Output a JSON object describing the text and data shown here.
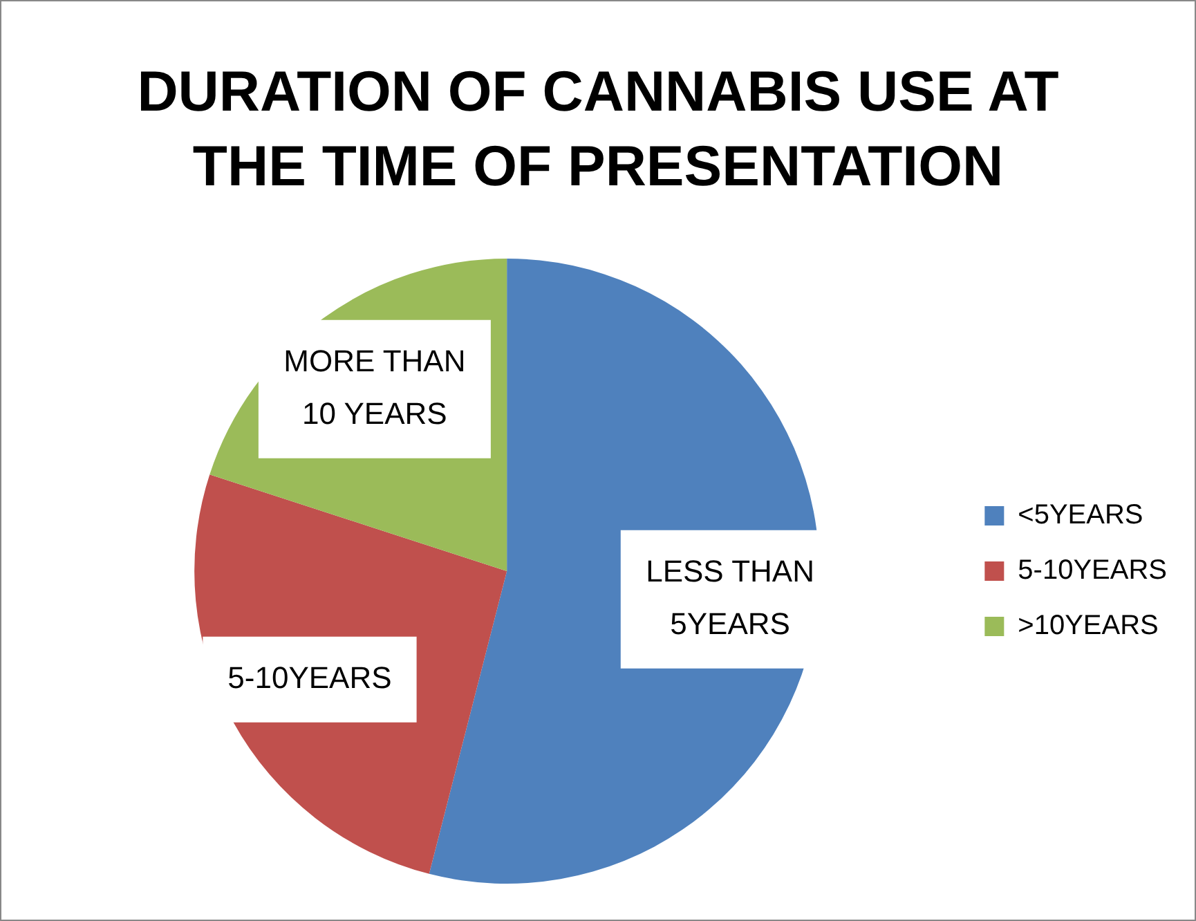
{
  "chart_data": {
    "type": "pie",
    "title": "DURATION OF CANNABIS USE AT THE TIME OF PRESENTATION",
    "categories": [
      "<5YEARS",
      "5-10YEARS",
      ">10YEARS"
    ],
    "values": [
      54,
      26,
      20
    ],
    "colors": [
      "#4f81bd",
      "#c0504d",
      "#9bbb59"
    ],
    "value_labels": [
      "LESS THAN 5YEARS",
      "5-10YEARS",
      "MORE THAN 10 YEARS"
    ],
    "legend": "right"
  }
}
